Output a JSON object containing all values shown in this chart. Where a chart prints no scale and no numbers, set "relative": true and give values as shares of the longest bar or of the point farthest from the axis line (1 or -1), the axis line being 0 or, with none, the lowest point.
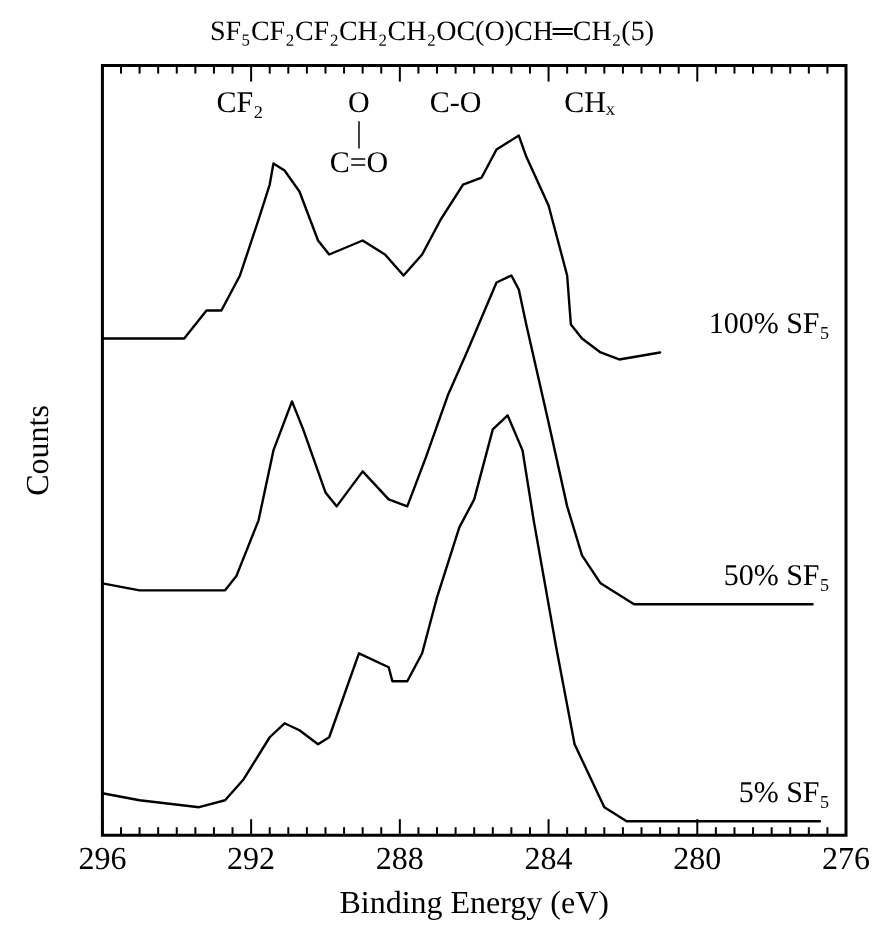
{
  "chart_data": {
    "type": "line",
    "title": "SF₅CF₂CF₂CH₂CH₂OC(O)CH═CH₂(5)",
    "xlabel": "Binding Energy (eV)",
    "ylabel": "Counts",
    "relative": true,
    "xlim": [
      296,
      276
    ],
    "xticks": [
      296,
      {
        "value": 295.5,
        "label": null
      },
      {
        "value": 295,
        "label": null
      },
      {
        "value": 294.5,
        "label": null
      },
      {
        "value": 294,
        "label": null
      },
      {
        "value": 293.5,
        "label": null
      },
      {
        "value": 293,
        "label": null
      },
      {
        "value": 292.5,
        "label": null
      },
      292,
      {
        "value": 291.5,
        "label": null
      },
      {
        "value": 291,
        "label": null
      },
      {
        "value": 290.5,
        "label": null
      },
      {
        "value": 290,
        "label": null
      },
      {
        "value": 289.5,
        "label": null
      },
      {
        "value": 289,
        "label": null
      },
      {
        "value": 288.5,
        "label": null
      },
      288,
      {
        "value": 287.5,
        "label": null
      },
      {
        "value": 287,
        "label": null
      },
      {
        "value": 286.5,
        "label": null
      },
      {
        "value": 286,
        "label": null
      },
      {
        "value": 285.5,
        "label": null
      },
      {
        "value": 285,
        "label": null
      },
      {
        "value": 284.5,
        "label": null
      },
      284,
      {
        "value": 283.5,
        "label": null
      },
      {
        "value": 283,
        "label": null
      },
      {
        "value": 282.5,
        "label": null
      },
      {
        "value": 282,
        "label": null
      },
      {
        "value": 281.5,
        "label": null
      },
      {
        "value": 281,
        "label": null
      },
      {
        "value": 280.5,
        "label": null
      },
      280,
      {
        "value": 279.5,
        "label": null
      },
      {
        "value": 279,
        "label": null
      },
      {
        "value": 278.5,
        "label": null
      },
      {
        "value": 278,
        "label": null
      },
      {
        "value": 277.5,
        "label": null
      },
      {
        "value": 277,
        "label": null
      },
      {
        "value": 276.5,
        "label": null
      },
      276
    ],
    "series": [
      {
        "name": "100% SF₅",
        "color": "#000000",
        "x": [
          296.0,
          293.8,
          293.2,
          292.8,
          292.3,
          291.8,
          291.5,
          291.4,
          291.1,
          290.7,
          290.2,
          289.9,
          289.0,
          288.4,
          287.9,
          287.4,
          286.9,
          286.3,
          285.8,
          285.4,
          285.1,
          284.8,
          284.6,
          284.0,
          283.5,
          283.4,
          283.1,
          282.6,
          282.1,
          281.0
        ],
        "values": [
          0.71,
          0.71,
          0.75,
          0.75,
          0.8,
          0.88,
          0.93,
          0.96,
          0.95,
          0.92,
          0.85,
          0.83,
          0.85,
          0.83,
          0.8,
          0.83,
          0.88,
          0.93,
          0.94,
          0.98,
          0.99,
          1.0,
          0.97,
          0.9,
          0.8,
          0.73,
          0.71,
          0.69,
          0.68,
          0.69
        ]
      },
      {
        "name": "50% SF₅",
        "color": "#000000",
        "x": [
          296.0,
          295.0,
          292.7,
          292.4,
          291.8,
          291.4,
          290.9,
          290.6,
          290.0,
          289.7,
          289.0,
          288.3,
          287.8,
          287.3,
          286.7,
          286.2,
          285.8,
          285.4,
          285.0,
          284.8,
          284.6,
          284.0,
          283.5,
          283.1,
          282.6,
          281.7,
          279.0,
          276.9
        ],
        "values": [
          0.36,
          0.35,
          0.35,
          0.37,
          0.45,
          0.55,
          0.62,
          0.58,
          0.49,
          0.47,
          0.52,
          0.48,
          0.47,
          0.54,
          0.63,
          0.69,
          0.74,
          0.79,
          0.8,
          0.78,
          0.73,
          0.59,
          0.47,
          0.4,
          0.36,
          0.33,
          0.33,
          0.33
        ]
      },
      {
        "name": "5% SF₅",
        "color": "#000000",
        "x": [
          296.0,
          295.0,
          293.4,
          292.7,
          292.2,
          291.5,
          291.1,
          290.7,
          290.2,
          289.9,
          289.5,
          289.1,
          288.3,
          288.2,
          287.8,
          287.4,
          287.1,
          287.0,
          286.4,
          286.0,
          285.5,
          285.1,
          284.7,
          284.4,
          283.9,
          283.8,
          283.3,
          282.5,
          281.9,
          279.0,
          276.7
        ],
        "values": [
          0.06,
          0.05,
          0.04,
          0.05,
          0.08,
          0.14,
          0.16,
          0.15,
          0.13,
          0.14,
          0.2,
          0.26,
          0.24,
          0.22,
          0.22,
          0.26,
          0.32,
          0.34,
          0.44,
          0.48,
          0.58,
          0.6,
          0.55,
          0.45,
          0.3,
          0.27,
          0.13,
          0.04,
          0.02,
          0.02,
          0.02
        ]
      }
    ],
    "annotations": [
      "CF₂",
      "O\n|\nC=O",
      "C-O",
      "CHₓ"
    ],
    "grid": false,
    "legend": false,
    "marker": "none",
    "line_style": "solid"
  }
}
